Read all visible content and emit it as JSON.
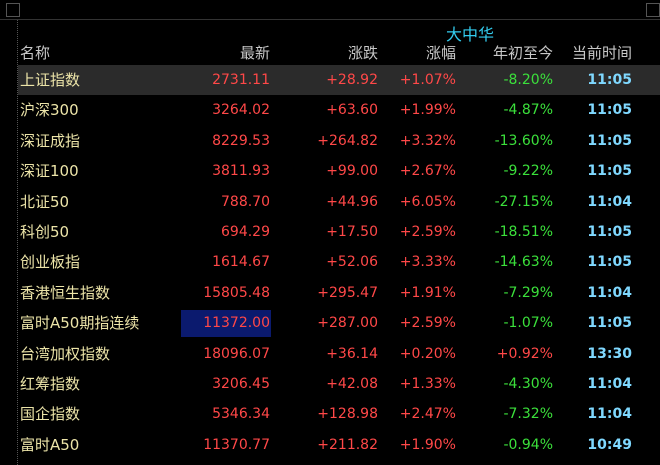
{
  "header": {
    "title": "大中华"
  },
  "table": {
    "columns": [
      "名称",
      "最新",
      "涨跌",
      "涨幅",
      "年初至今",
      "当前时间"
    ],
    "rows": [
      [
        "上证指数",
        "2731.11",
        "+28.92",
        "+1.07%",
        "-8.20%",
        "11:05"
      ],
      [
        "沪深300",
        "3264.02",
        "+63.60",
        "+1.99%",
        "-4.87%",
        "11:05"
      ],
      [
        "深证成指",
        "8229.53",
        "+264.82",
        "+3.32%",
        "-13.60%",
        "11:05"
      ],
      [
        "深证100",
        "3811.93",
        "+99.00",
        "+2.67%",
        "-9.22%",
        "11:05"
      ],
      [
        "北证50",
        "788.70",
        "+44.96",
        "+6.05%",
        "-27.15%",
        "11:04"
      ],
      [
        "科创50",
        "694.29",
        "+17.50",
        "+2.59%",
        "-18.51%",
        "11:05"
      ],
      [
        "创业板指",
        "1614.67",
        "+52.06",
        "+3.33%",
        "-14.63%",
        "11:05"
      ],
      [
        "香港恒生指数",
        "15805.48",
        "+295.47",
        "+1.91%",
        "-7.29%",
        "11:04"
      ],
      [
        "富时A50期指连续",
        "11372.00",
        "+287.00",
        "+2.59%",
        "-1.07%",
        "11:05"
      ],
      [
        "台湾加权指数",
        "18096.07",
        "+36.14",
        "+0.20%",
        "+0.92%",
        "13:30"
      ],
      [
        "红筹指数",
        "3206.45",
        "+42.08",
        "+1.33%",
        "-4.30%",
        "11:04"
      ],
      [
        "国企指数",
        "5346.34",
        "+128.98",
        "+2.47%",
        "-7.32%",
        "11:04"
      ],
      [
        "富时A50",
        "11370.77",
        "+211.82",
        "+1.90%",
        "-0.94%",
        "10:49"
      ]
    ]
  }
}
